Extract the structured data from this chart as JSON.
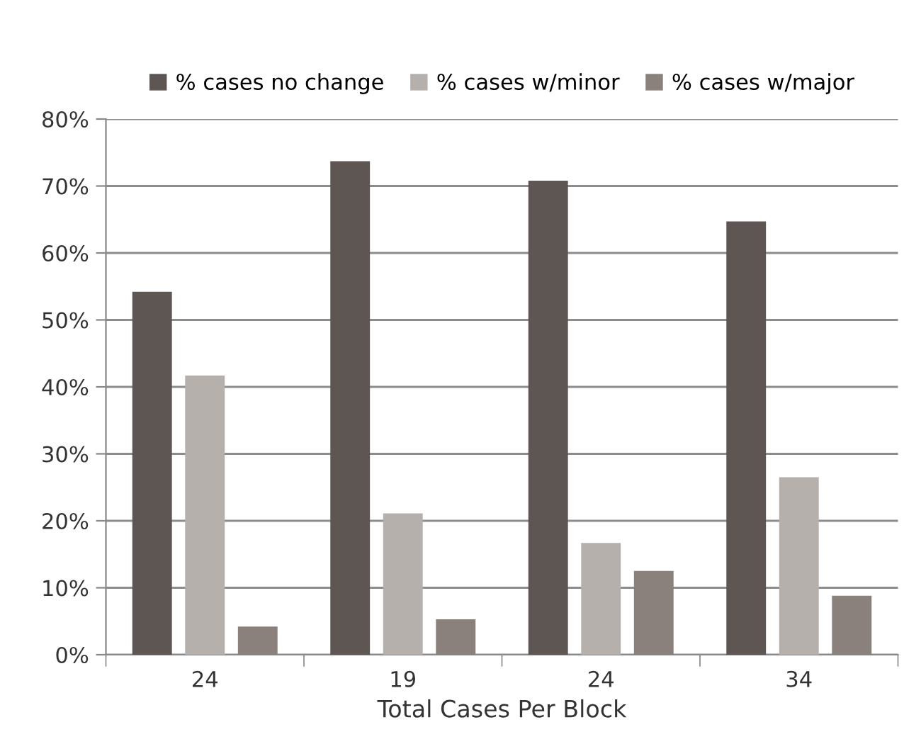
{
  "chart_data": {
    "type": "bar",
    "xlabel": "Total Cases Per Block",
    "categories": [
      "24",
      "19",
      "24",
      "34"
    ],
    "series": [
      {
        "name": "% cases no change",
        "color": "#5e5652",
        "values": [
          54.2,
          73.7,
          70.8,
          64.7
        ]
      },
      {
        "name": "% cases w/minor",
        "color": "#b5b0ac",
        "values": [
          41.7,
          21.1,
          16.7,
          26.5
        ]
      },
      {
        "name": "% cases w/major",
        "color": "#8a817c",
        "values": [
          4.2,
          5.3,
          12.5,
          8.8
        ]
      }
    ],
    "ylim": [
      0,
      80
    ],
    "yticks": [
      {
        "value": 0,
        "label": "0%"
      },
      {
        "value": 10,
        "label": "10%"
      },
      {
        "value": 20,
        "label": "20%"
      },
      {
        "value": 30,
        "label": "30%"
      },
      {
        "value": 40,
        "label": "40%"
      },
      {
        "value": 50,
        "label": "50%"
      },
      {
        "value": 60,
        "label": "60%"
      },
      {
        "value": 70,
        "label": "70%"
      },
      {
        "value": 80,
        "label": "80%"
      }
    ],
    "grid": "y",
    "legend": "top"
  }
}
